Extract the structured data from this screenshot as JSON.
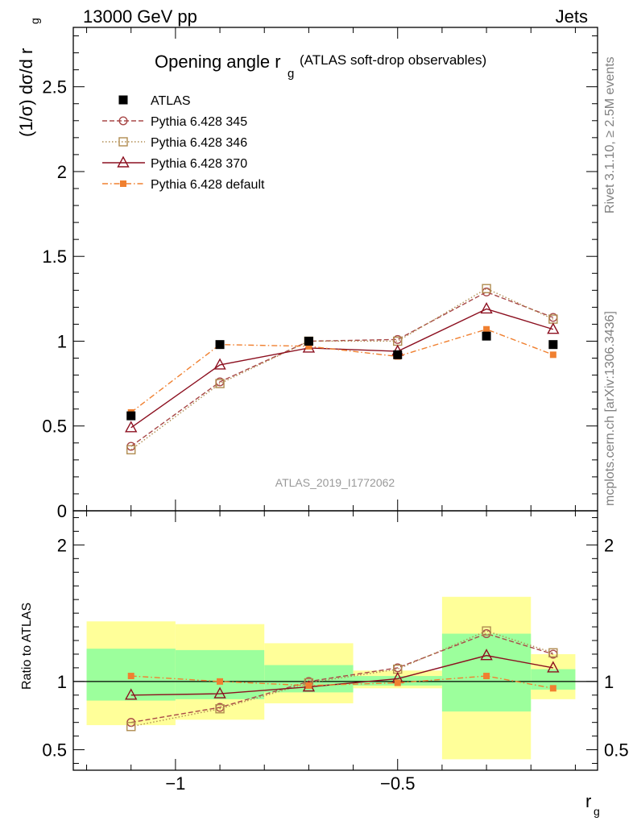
{
  "chart_data": {
    "type": "line",
    "header_left": "13000 GeV pp",
    "header_right": "Jets",
    "title_main": "Opening angle r",
    "title_sub": "g",
    "title_tail": "(ATLAS soft-drop observables)",
    "ylabel_main": "(1/σ) dσ/d r",
    "ylabel_sub": "g",
    "ratio_ylabel": "Ratio to ATLAS",
    "xlabel_main": "r",
    "xlabel_sub": "g",
    "analysis_label": "ATLAS_2019_I1772062",
    "side_label_top": "Rivet 3.1.10, ≥ 2.5M events",
    "side_label_bottom": "mcplots.cern.ch [arXiv:1306.3436]",
    "xlim": [
      -1.23,
      -0.05
    ],
    "ylim": [
      0,
      2.85
    ],
    "ratio_ylim": [
      0.35,
      2.25
    ],
    "x_ticks": [
      {
        "v": -1,
        "label": "−1"
      },
      {
        "v": -0.5,
        "label": "−0.5"
      }
    ],
    "y_ticks": [
      {
        "v": 0,
        "label": "0"
      },
      {
        "v": 0.5,
        "label": "0.5"
      },
      {
        "v": 1,
        "label": "1"
      },
      {
        "v": 1.5,
        "label": "1.5"
      },
      {
        "v": 2,
        "label": "2"
      },
      {
        "v": 2.5,
        "label": "2.5"
      }
    ],
    "ratio_ticks": [
      {
        "v": 0.5,
        "label": "0.5"
      },
      {
        "v": 1,
        "label": "1"
      },
      {
        "v": 2,
        "label": "2"
      }
    ],
    "bins": [
      {
        "lo": -1.2,
        "hi": -1.0,
        "x": -1.1,
        "green": [
          0.86,
          1.24
        ],
        "yellow": [
          0.68,
          1.44
        ]
      },
      {
        "lo": -1.0,
        "hi": -0.8,
        "x": -0.9,
        "green": [
          0.87,
          1.23
        ],
        "yellow": [
          0.72,
          1.42
        ]
      },
      {
        "lo": -0.8,
        "hi": -0.6,
        "x": -0.7,
        "green": [
          0.92,
          1.12
        ],
        "yellow": [
          0.84,
          1.28
        ]
      },
      {
        "lo": -0.6,
        "hi": -0.4,
        "x": -0.5,
        "green": [
          0.97,
          1.04
        ],
        "yellow": [
          0.95,
          1.08
        ]
      },
      {
        "lo": -0.4,
        "hi": -0.2,
        "x": -0.3,
        "green": [
          0.78,
          1.35
        ],
        "yellow": [
          0.43,
          1.62
        ]
      },
      {
        "lo": -0.2,
        "hi": -0.1,
        "x": -0.15,
        "green": [
          0.94,
          1.09
        ],
        "yellow": [
          0.87,
          1.2
        ]
      }
    ],
    "series": [
      {
        "name": "ATLAS",
        "color": "#000000",
        "marker": "filled-square",
        "line": "none",
        "x": [
          -1.1,
          -0.9,
          -0.7,
          -0.5,
          -0.3,
          -0.15
        ],
        "values": [
          0.56,
          0.98,
          1.0,
          0.92,
          1.03,
          0.98
        ]
      },
      {
        "name": "Pythia 6.428 345",
        "color": "#a84848",
        "marker": "open-circle",
        "line": "dashed",
        "x": [
          -1.1,
          -0.9,
          -0.7,
          -0.5,
          -0.3,
          -0.15
        ],
        "values": [
          0.38,
          0.76,
          1.0,
          1.01,
          1.29,
          1.14
        ],
        "ratio": [
          0.7,
          0.81,
          1.0,
          1.1,
          1.35,
          1.2
        ]
      },
      {
        "name": "Pythia 6.428 346",
        "color": "#b08c50",
        "marker": "open-square",
        "line": "dotted",
        "x": [
          -1.1,
          -0.9,
          -0.7,
          -0.5,
          -0.3,
          -0.15
        ],
        "values": [
          0.36,
          0.75,
          1.0,
          1.0,
          1.31,
          1.13
        ],
        "ratio": [
          0.67,
          0.8,
          0.99,
          1.09,
          1.37,
          1.21
        ]
      },
      {
        "name": "Pythia 6.428 370",
        "color": "#8c1020",
        "marker": "open-triangle",
        "line": "solid",
        "x": [
          -1.1,
          -0.9,
          -0.7,
          -0.5,
          -0.3,
          -0.15
        ],
        "values": [
          0.49,
          0.86,
          0.96,
          0.94,
          1.19,
          1.07
        ],
        "ratio": [
          0.9,
          0.91,
          0.96,
          1.02,
          1.19,
          1.1
        ]
      },
      {
        "name": "Pythia 6.428 default",
        "color": "#f08030",
        "marker": "filled-small-square",
        "line": "dashdot",
        "x": [
          -1.1,
          -0.9,
          -0.7,
          -0.5,
          -0.3,
          -0.15
        ],
        "values": [
          0.58,
          0.98,
          0.97,
          0.91,
          1.07,
          0.92
        ],
        "ratio": [
          1.04,
          1.0,
          0.97,
          0.99,
          1.04,
          0.95
        ]
      }
    ],
    "colors": {
      "band_green": "#9cff9c",
      "band_yellow": "#ffff99",
      "axis": "#000000",
      "annotation": "#999999",
      "side_text": "#808080"
    }
  }
}
